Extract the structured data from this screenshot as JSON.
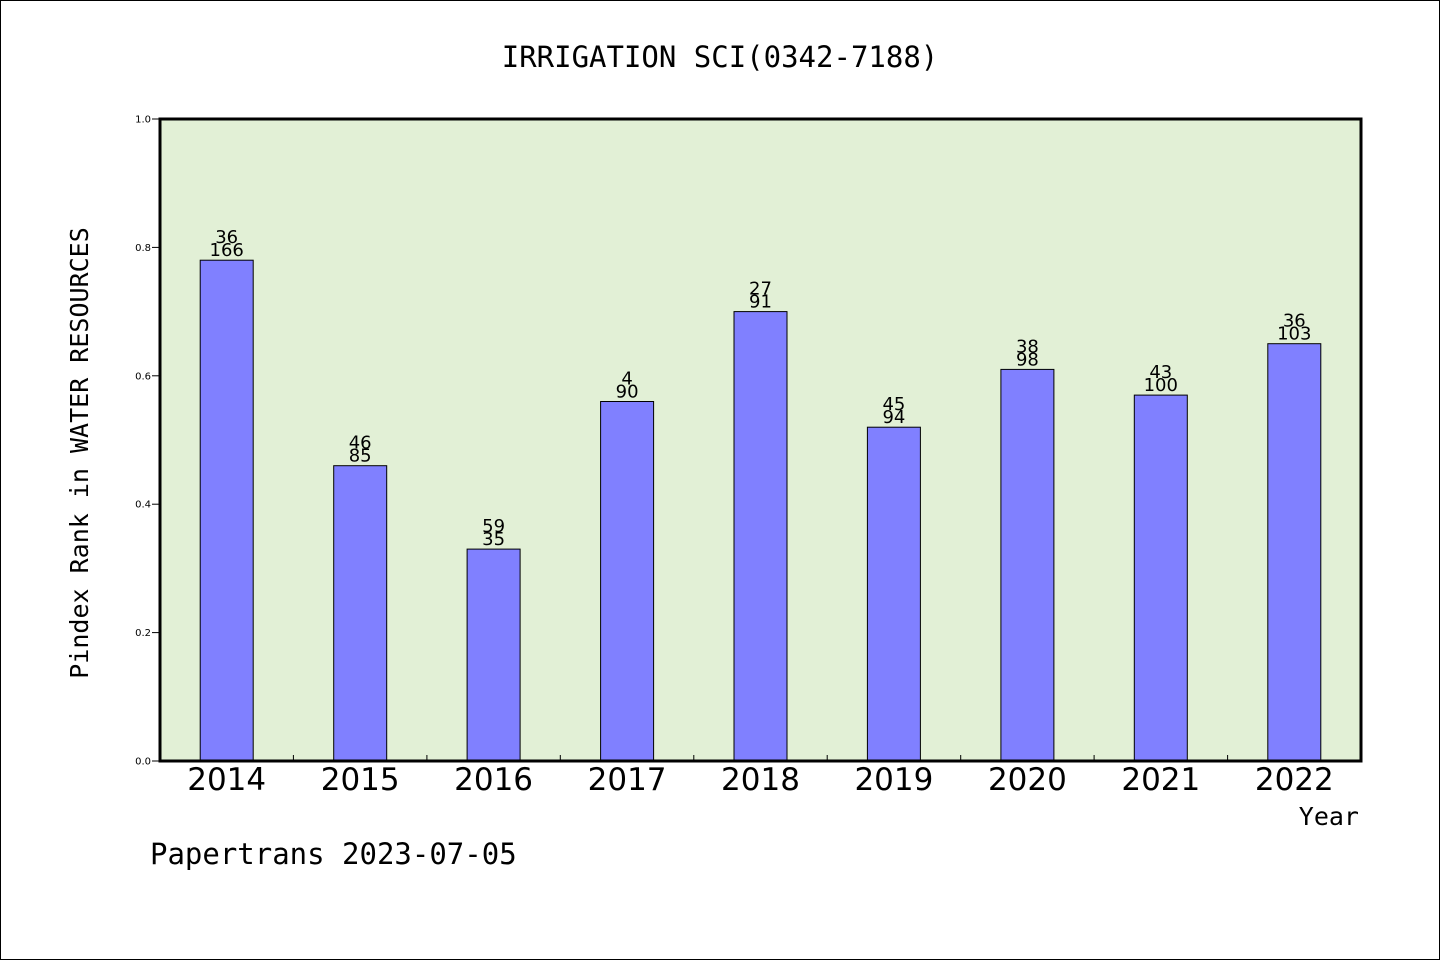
{
  "chart_data": {
    "type": "bar",
    "title": "IRRIGATION SCI(0342-7188)",
    "xlabel": "Year",
    "ylabel": "Pindex Rank in WATER RESOURCES",
    "categories": [
      "2014",
      "2015",
      "2016",
      "2017",
      "2018",
      "2019",
      "2020",
      "2021",
      "2022"
    ],
    "values": [
      0.78,
      0.46,
      0.33,
      0.56,
      0.7,
      0.52,
      0.61,
      0.57,
      0.65
    ],
    "labels_top": [
      "36",
      "46",
      "59",
      "4",
      "27",
      "45",
      "38",
      "43",
      "36"
    ],
    "labels_bottom": [
      "166",
      "85",
      "35",
      "90",
      "91",
      "94",
      "98",
      "100",
      "103"
    ],
    "ylim": [
      0,
      1.0
    ],
    "yticks": [
      "0.0",
      "0.2",
      "0.4",
      "0.6",
      "0.8",
      "1.0"
    ],
    "grid": false,
    "colors": {
      "plot_background": "#e2f0d6",
      "bar_fill": "#8080ff",
      "bar_stroke": "#000000"
    }
  },
  "footer": {
    "text": "Papertrans 2023-07-05"
  }
}
